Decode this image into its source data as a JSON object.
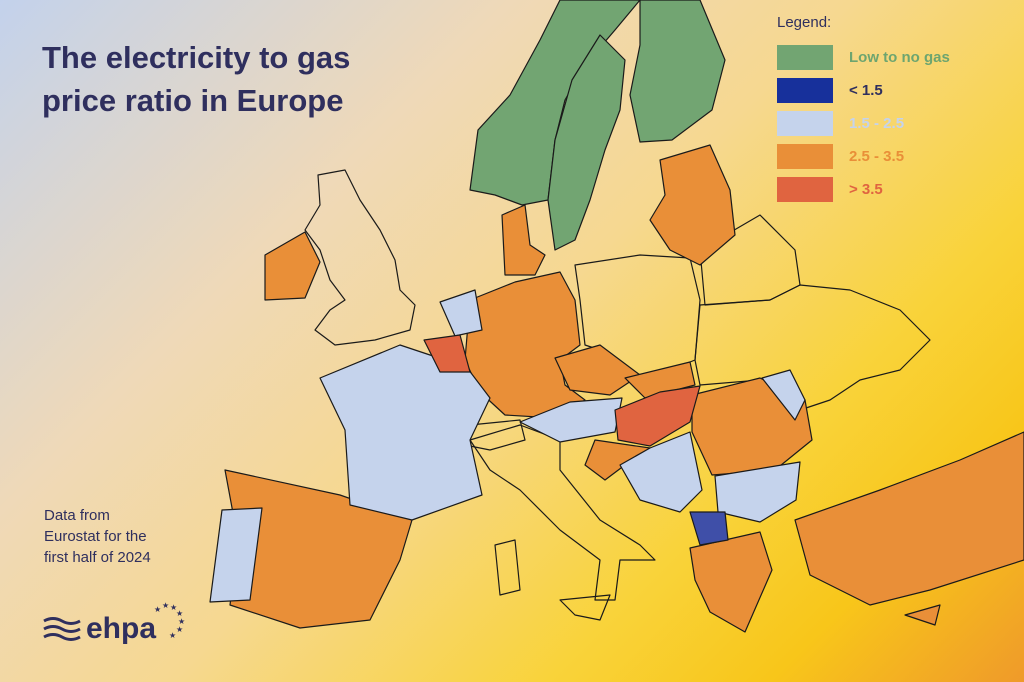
{
  "title": "The electricity to gas price ratio in Europe",
  "source_note": "Data from Eurostat for the first half of 2024",
  "logo": {
    "text": "ehpa"
  },
  "legend": {
    "title": "Legend:",
    "items": [
      {
        "label": "Low to no gas",
        "color": "#72a572",
        "text_color": "#6da56f"
      },
      {
        "label": "< 1.5",
        "color": "#17309b",
        "text_color": "#2f2f5e"
      },
      {
        "label": "1.5 - 2.5",
        "color": "#c5d3ec",
        "text_color": "#c5d3ec"
      },
      {
        "label": "2.5 - 3.5",
        "color": "#e98f38",
        "text_color": "#e98f38"
      },
      {
        "label": "> 3.5",
        "color": "#e06440",
        "text_color": "#e06440"
      }
    ]
  }
}
